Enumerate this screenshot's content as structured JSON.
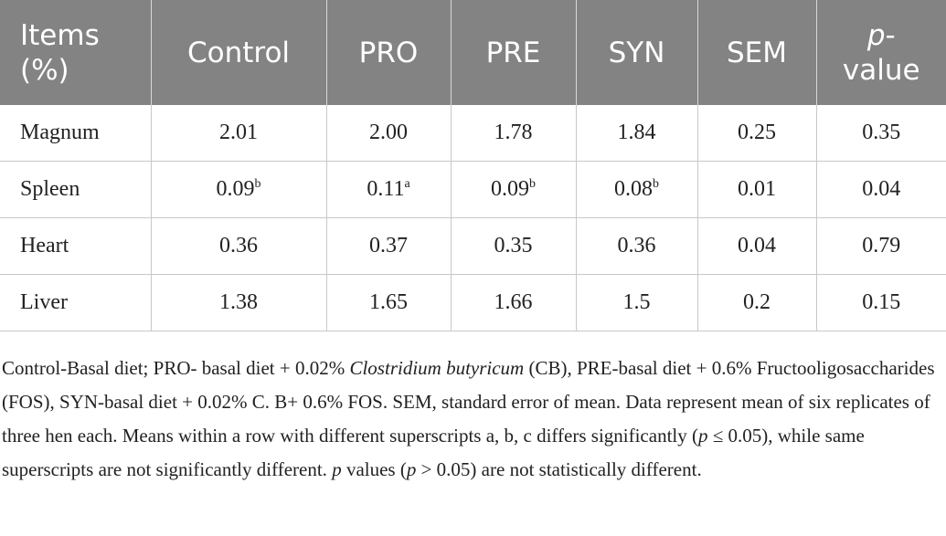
{
  "table": {
    "header": [
      "Items (%)",
      "Control",
      "PRO",
      "PRE",
      "SYN",
      "SEM",
      {
        "italic": "p",
        "text": "-value"
      }
    ],
    "rows": [
      [
        "Magnum",
        "2.01",
        "2.00",
        "1.78",
        "1.84",
        "0.25",
        "0.35"
      ],
      [
        "Spleen",
        {
          "text": "0.09",
          "sup": "b"
        },
        {
          "text": "0.11",
          "sup": "a"
        },
        {
          "text": "0.09",
          "sup": "b"
        },
        {
          "text": "0.08",
          "sup": "b"
        },
        "0.01",
        "0.04"
      ],
      [
        "Heart",
        "0.36",
        "0.37",
        "0.35",
        "0.36",
        "0.04",
        "0.79"
      ],
      [
        "Liver",
        "1.38",
        "1.65",
        "1.66",
        "1.5",
        "0.2",
        "0.15"
      ]
    ]
  },
  "footnote": [
    {
      "text": "Control-Basal diet; PRO- basal diet + 0.02% "
    },
    {
      "text": "Clostridium butyricum",
      "italic": true
    },
    {
      "text": " (CB), PRE-basal diet + 0.6% Fructooligosaccharides (FOS), SYN-basal diet + 0.02% C. B+ 0.6% FOS. SEM, standard error of mean. Data represent mean of six replicates of three hen each. Means within a row with different superscripts a, b, c differs significantly ("
    },
    {
      "text": "p",
      "italic": true
    },
    {
      "text": " ≤ 0.05), while same superscripts are not significantly different. "
    },
    {
      "text": "p",
      "italic": true
    },
    {
      "text": " values ("
    },
    {
      "text": "p",
      "italic": true
    },
    {
      "text": " > 0.05) are not statistically different."
    }
  ]
}
